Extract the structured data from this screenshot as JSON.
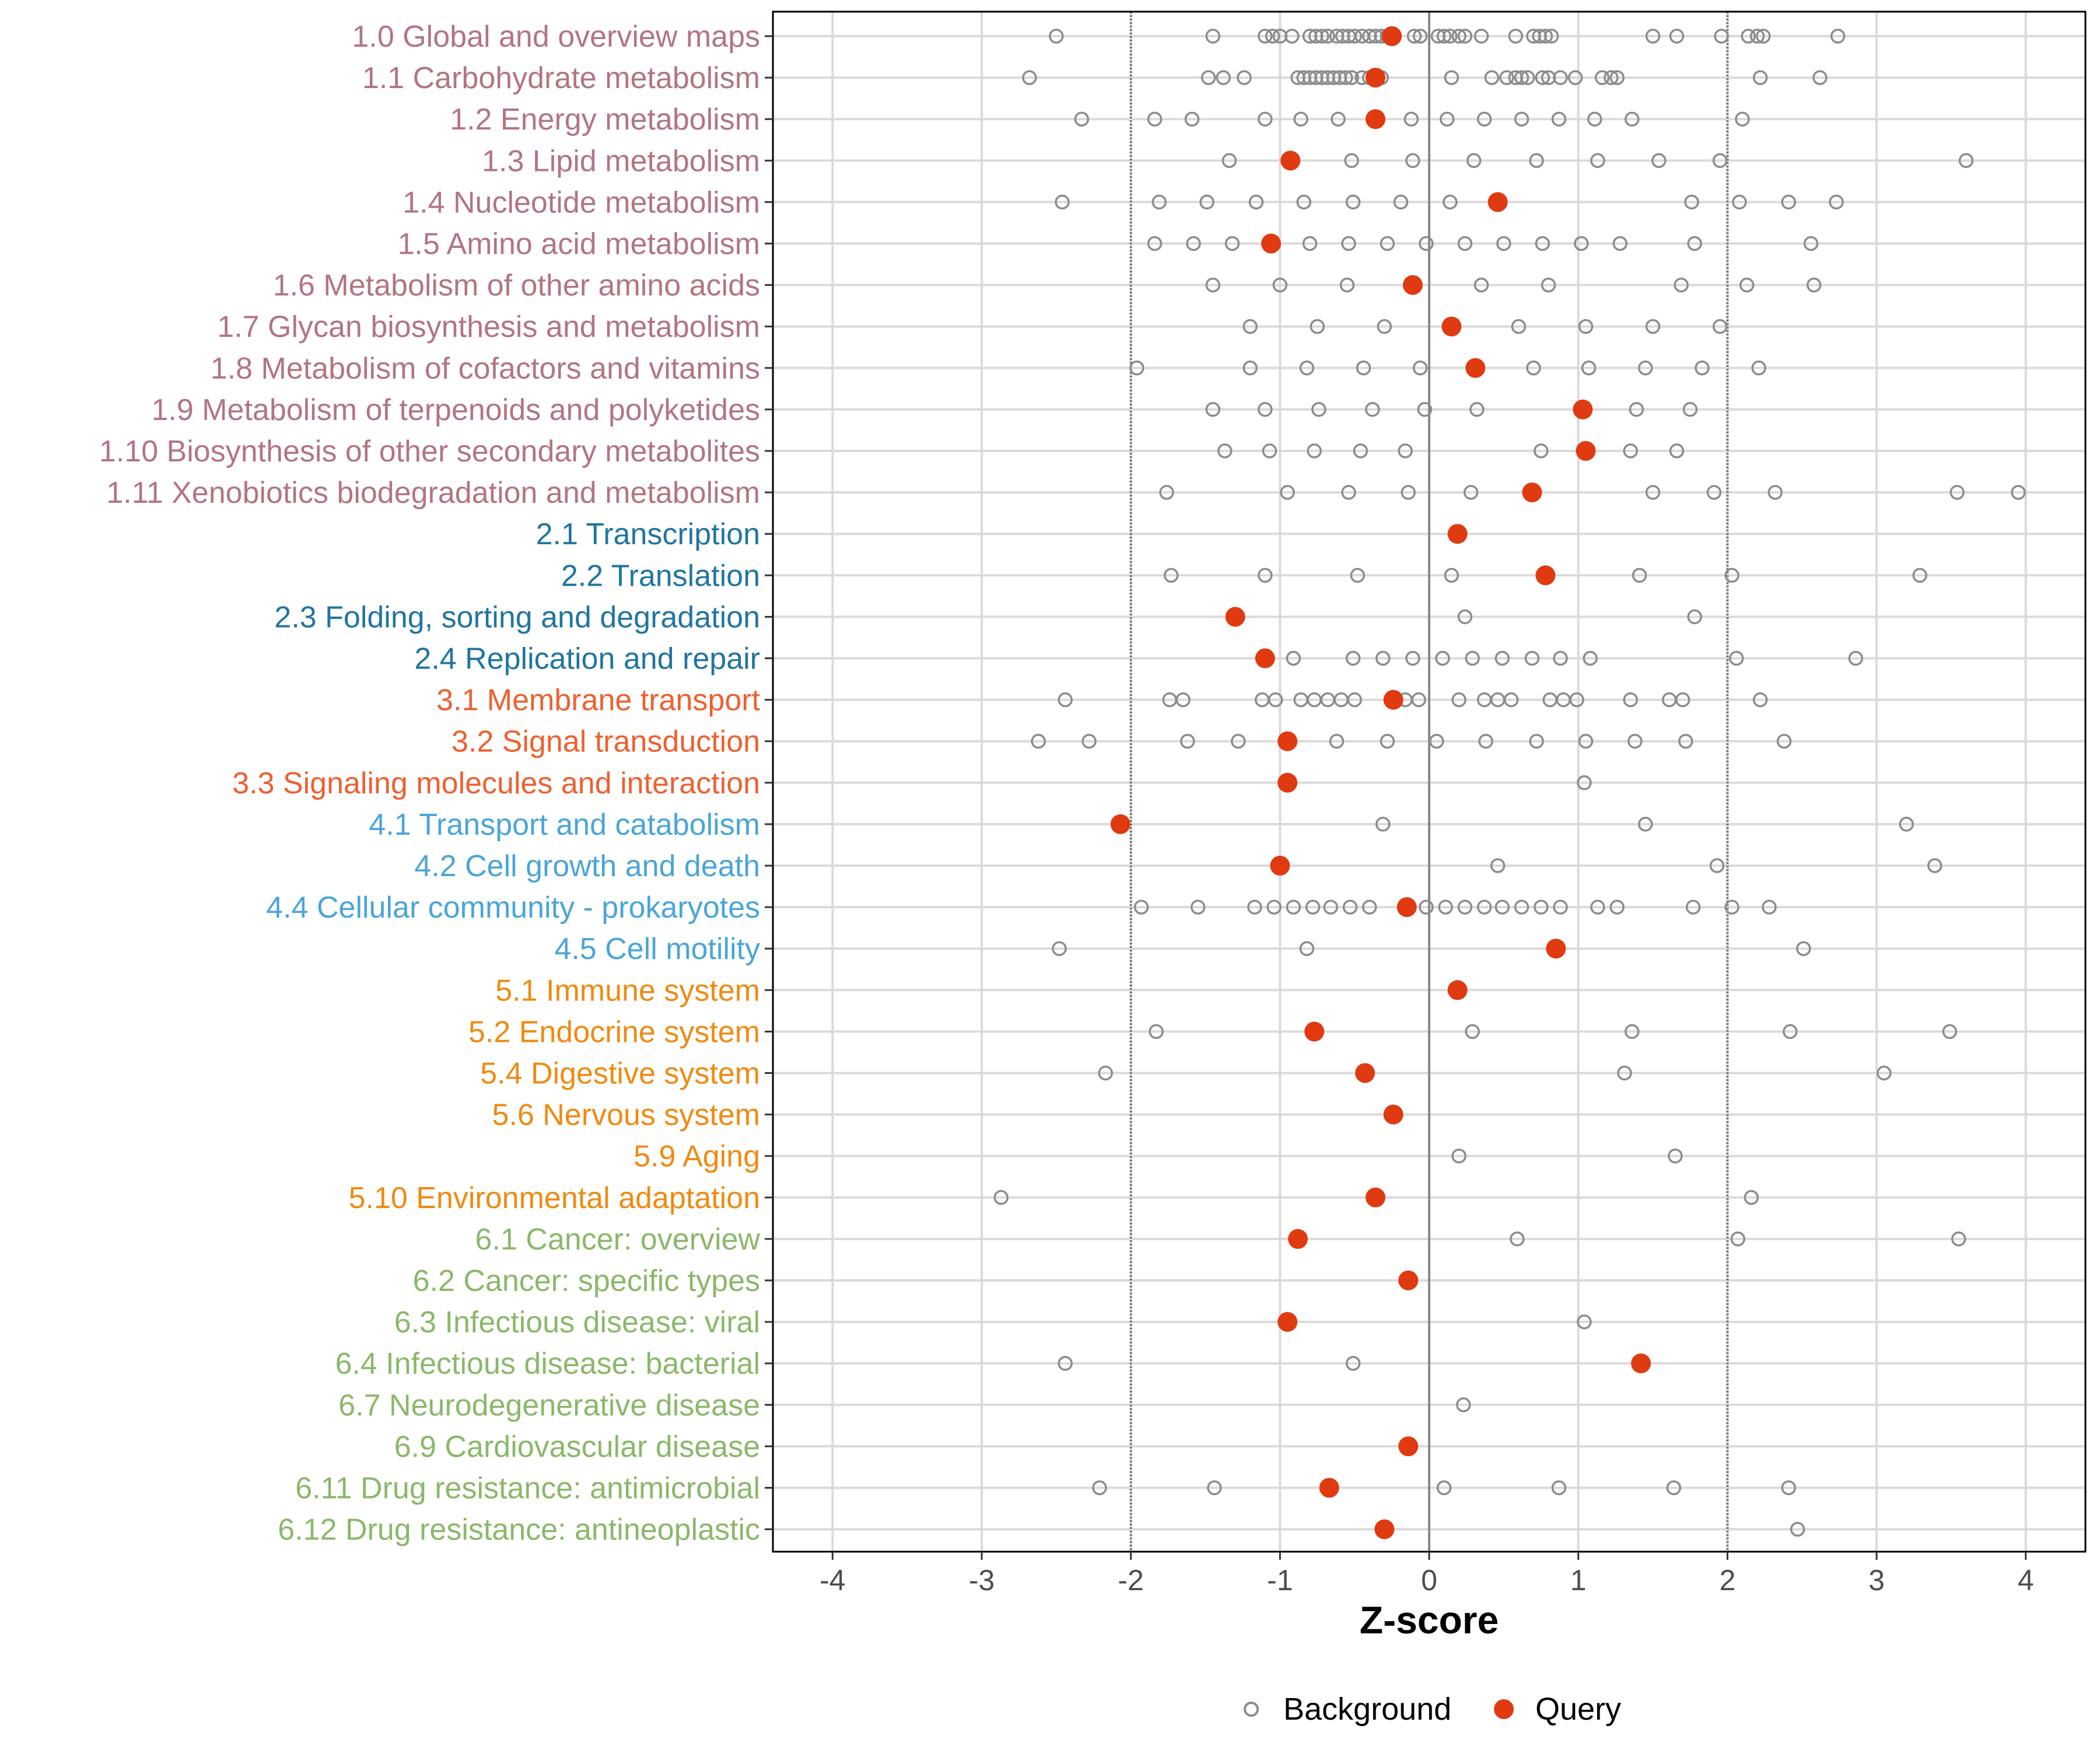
{
  "colors": {
    "metabolism": "#b27582",
    "genetic": "#2175a0",
    "environmental": "#ee6030",
    "cellular": "#4aa5d8",
    "organismal": "#f08a12",
    "disease": "#8ab86a",
    "query": "#e03a10",
    "background": "#8c8c8c",
    "grid": "#dadada",
    "threshold": "#777777",
    "zero": "#888888"
  },
  "chart_data": {
    "type": "dot",
    "xlabel": "Z-score",
    "xlim": [
      -4.4,
      4.4
    ],
    "xticks": [
      -4,
      -3,
      -2,
      -1,
      0,
      1,
      2,
      3,
      4
    ],
    "xtick_labels": [
      "-4",
      "-3",
      "-2",
      "-1",
      "0",
      "1",
      "2",
      "3",
      "4"
    ],
    "thresholds": [
      -2,
      2
    ],
    "legend": {
      "position": "bottom",
      "background_label": "Background",
      "query_label": "Query"
    },
    "categories": [
      {
        "label": "1.0 Global and overview maps",
        "group": "metabolism",
        "query": -0.25,
        "background": [
          -2.5,
          -1.45,
          -1.1,
          -1.05,
          -1.0,
          -0.92,
          -0.8,
          -0.76,
          -0.72,
          -0.68,
          -0.62,
          -0.58,
          -0.54,
          -0.5,
          -0.45,
          -0.4,
          -0.36,
          -0.32,
          -0.28,
          -0.1,
          -0.06,
          0.06,
          0.1,
          0.14,
          0.2,
          0.24,
          0.35,
          0.58,
          0.7,
          0.74,
          0.78,
          0.82,
          1.5,
          1.66,
          1.96,
          2.14,
          2.2,
          2.24,
          2.74
        ]
      },
      {
        "label": "1.1 Carbohydrate metabolism",
        "group": "metabolism",
        "query": -0.36,
        "background": [
          -2.68,
          -1.48,
          -1.38,
          -1.24,
          -0.88,
          -0.84,
          -0.8,
          -0.76,
          -0.72,
          -0.68,
          -0.64,
          -0.6,
          -0.56,
          -0.52,
          -0.45,
          -0.4,
          -0.36,
          -0.32,
          0.15,
          0.42,
          0.52,
          0.58,
          0.62,
          0.66,
          0.76,
          0.8,
          0.88,
          0.98,
          1.16,
          1.22,
          1.26,
          2.22,
          2.62
        ]
      },
      {
        "label": "1.2 Energy metabolism",
        "group": "metabolism",
        "query": -0.36,
        "background": [
          -2.33,
          -1.84,
          -1.59,
          -1.1,
          -0.86,
          -0.61,
          -0.12,
          0.12,
          0.37,
          0.62,
          0.87,
          1.11,
          1.36,
          2.1
        ]
      },
      {
        "label": "1.3 Lipid metabolism",
        "group": "metabolism",
        "query": -0.93,
        "background": [
          -1.34,
          -0.52,
          -0.11,
          0.3,
          0.72,
          1.13,
          1.54,
          1.95,
          3.6
        ]
      },
      {
        "label": "1.4 Nucleotide metabolism",
        "group": "metabolism",
        "query": 0.46,
        "background": [
          -2.46,
          -1.81,
          -1.49,
          -1.16,
          -0.84,
          -0.51,
          -0.19,
          0.14,
          1.76,
          2.08,
          2.41,
          2.73
        ]
      },
      {
        "label": "1.5 Amino acid metabolism",
        "group": "metabolism",
        "query": -1.06,
        "background": [
          -1.84,
          -1.58,
          -1.32,
          -0.8,
          -0.54,
          -0.28,
          -0.02,
          0.24,
          0.5,
          0.76,
          1.02,
          1.28,
          1.78,
          2.56
        ]
      },
      {
        "label": "1.6 Metabolism of other amino acids",
        "group": "metabolism",
        "query": -0.11,
        "background": [
          -1.45,
          -1.0,
          -0.55,
          0.35,
          0.8,
          1.69,
          2.13,
          2.58
        ]
      },
      {
        "label": "1.7 Glycan biosynthesis and metabolism",
        "group": "metabolism",
        "query": 0.15,
        "background": [
          -1.2,
          -0.75,
          -0.3,
          0.6,
          1.05,
          1.5,
          1.95
        ]
      },
      {
        "label": "1.8 Metabolism of cofactors and vitamins",
        "group": "metabolism",
        "query": 0.31,
        "background": [
          -1.96,
          -1.2,
          -0.82,
          -0.44,
          -0.06,
          0.7,
          1.07,
          1.45,
          1.83,
          2.21
        ]
      },
      {
        "label": "1.9 Metabolism of terpenoids and polyketides",
        "group": "metabolism",
        "query": 1.03,
        "background": [
          -1.45,
          -1.1,
          -0.74,
          -0.38,
          -0.03,
          0.32,
          1.39,
          1.75
        ]
      },
      {
        "label": "1.10 Biosynthesis of other secondary metabolites",
        "group": "metabolism",
        "query": 1.05,
        "background": [
          -1.37,
          -1.07,
          -0.77,
          -0.46,
          -0.16,
          0.75,
          1.35,
          1.66
        ]
      },
      {
        "label": "1.11 Xenobiotics biodegradation and metabolism",
        "group": "metabolism",
        "query": 0.69,
        "background": [
          -1.76,
          -0.95,
          -0.54,
          -0.14,
          0.28,
          1.5,
          1.91,
          2.32,
          3.54,
          3.95
        ]
      },
      {
        "label": "2.1 Transcription",
        "group": "genetic",
        "query": 0.19,
        "background": []
      },
      {
        "label": "2.2 Translation",
        "group": "genetic",
        "query": 0.78,
        "background": [
          -1.73,
          -1.1,
          -0.48,
          0.15,
          1.41,
          2.03,
          3.29
        ]
      },
      {
        "label": "2.3 Folding, sorting and degradation",
        "group": "genetic",
        "query": -1.3,
        "background": [
          0.24,
          1.78
        ]
      },
      {
        "label": "2.4 Replication and repair",
        "group": "genetic",
        "query": -1.1,
        "background": [
          -0.91,
          -0.51,
          -0.31,
          -0.11,
          0.09,
          0.29,
          0.49,
          0.69,
          0.88,
          1.08,
          2.06,
          2.86
        ]
      },
      {
        "label": "3.1 Membrane transport",
        "group": "environmental",
        "query": -0.24,
        "background": [
          -2.44,
          -1.74,
          -1.65,
          -1.12,
          -1.03,
          -0.86,
          -0.77,
          -0.68,
          -0.59,
          -0.5,
          -0.16,
          -0.07,
          0.2,
          0.37,
          0.46,
          0.55,
          0.81,
          0.9,
          0.99,
          1.35,
          1.61,
          1.7,
          2.22
        ]
      },
      {
        "label": "3.2 Signal transduction",
        "group": "environmental",
        "query": -0.95,
        "background": [
          -2.62,
          -2.28,
          -1.62,
          -1.28,
          -0.62,
          -0.28,
          0.05,
          0.38,
          0.72,
          1.05,
          1.38,
          1.72,
          2.38
        ]
      },
      {
        "label": "3.3 Signaling molecules and interaction",
        "group": "environmental",
        "query": -0.95,
        "background": [
          1.04
        ]
      },
      {
        "label": "4.1 Transport and catabolism",
        "group": "cellular",
        "query": -2.07,
        "background": [
          -0.31,
          1.45,
          3.2
        ]
      },
      {
        "label": "4.2 Cell growth and death",
        "group": "cellular",
        "query": -1.0,
        "background": [
          0.46,
          1.93,
          3.39
        ]
      },
      {
        "label": "4.4 Cellular community - prokaryotes",
        "group": "cellular",
        "query": -0.15,
        "background": [
          -1.93,
          -1.55,
          -1.17,
          -1.04,
          -0.91,
          -0.78,
          -0.66,
          -0.53,
          -0.4,
          -0.02,
          0.11,
          0.24,
          0.37,
          0.49,
          0.62,
          0.75,
          0.88,
          1.13,
          1.26,
          1.77,
          2.03,
          2.28
        ]
      },
      {
        "label": "4.5 Cell motility",
        "group": "cellular",
        "query": 0.85,
        "background": [
          -2.48,
          -0.82,
          2.51
        ]
      },
      {
        "label": "5.1 Immune system",
        "group": "organismal",
        "query": 0.19,
        "background": []
      },
      {
        "label": "5.2 Endocrine system",
        "group": "organismal",
        "query": -0.77,
        "background": [
          -1.83,
          0.29,
          1.36,
          2.42,
          3.49
        ]
      },
      {
        "label": "5.4 Digestive system",
        "group": "organismal",
        "query": -0.43,
        "background": [
          -2.17,
          1.31,
          3.05
        ]
      },
      {
        "label": "5.6 Nervous system",
        "group": "organismal",
        "query": -0.24,
        "background": []
      },
      {
        "label": "5.9 Aging",
        "group": "organismal",
        "query": null,
        "background": [
          0.2,
          1.65
        ]
      },
      {
        "label": "5.10 Environmental adaptation",
        "group": "organismal",
        "query": -0.36,
        "background": [
          -2.87,
          2.16
        ]
      },
      {
        "label": "6.1 Cancer: overview",
        "group": "disease",
        "query": -0.88,
        "background": [
          0.59,
          2.07,
          3.55
        ]
      },
      {
        "label": "6.2 Cancer: specific types",
        "group": "disease",
        "query": -0.14,
        "background": []
      },
      {
        "label": "6.3 Infectious disease: viral",
        "group": "disease",
        "query": -0.95,
        "background": [
          1.04
        ]
      },
      {
        "label": "6.4 Infectious disease: bacterial",
        "group": "disease",
        "query": 1.42,
        "background": [
          -2.44,
          -0.51
        ]
      },
      {
        "label": "6.7 Neurodegenerative disease",
        "group": "disease",
        "query": null,
        "background": [
          0.23
        ]
      },
      {
        "label": "6.9 Cardiovascular disease",
        "group": "disease",
        "query": -0.14,
        "background": []
      },
      {
        "label": "6.11 Drug resistance: antimicrobial",
        "group": "disease",
        "query": -0.67,
        "background": [
          -2.21,
          -1.44,
          0.1,
          0.87,
          1.64,
          2.41
        ]
      },
      {
        "label": "6.12 Drug resistance: antineoplastic",
        "group": "disease",
        "query": -0.3,
        "background": [
          2.47
        ]
      }
    ]
  }
}
